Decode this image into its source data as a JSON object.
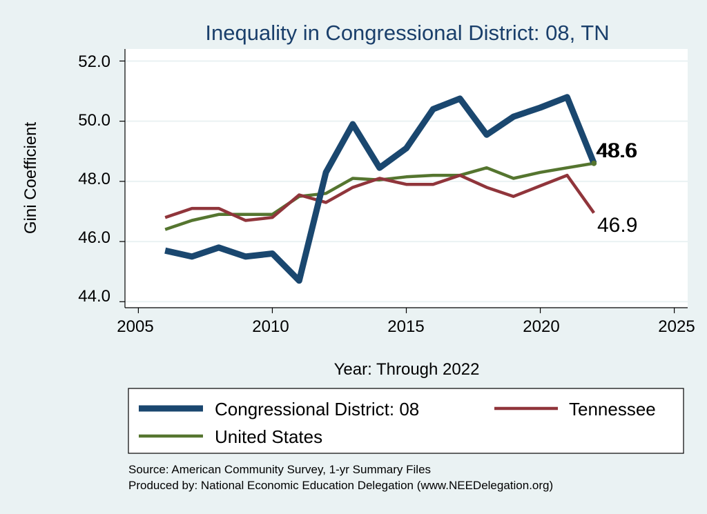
{
  "chart_data": {
    "type": "line",
    "title": "Inequality in Congressional District:  08, TN",
    "xlabel": "Year: Through 2022",
    "ylabel": "Gini Coefficient",
    "xlim": [
      2004.5,
      2025.5
    ],
    "ylim": [
      43.8,
      52.4
    ],
    "xticks": [
      2005,
      2010,
      2015,
      2020,
      2025
    ],
    "yticks": [
      44.0,
      46.0,
      48.0,
      50.0,
      52.0
    ],
    "ytick_labels": [
      "44.0",
      "46.0",
      "48.0",
      "50.0",
      "52.0"
    ],
    "grid": true,
    "x": [
      2006,
      2007,
      2008,
      2009,
      2010,
      2011,
      2012,
      2013,
      2014,
      2015,
      2016,
      2017,
      2018,
      2019,
      2020,
      2021,
      2022
    ],
    "series": [
      {
        "name": "Congressional District:  08",
        "color": "#1a476f",
        "values": [
          45.7,
          45.5,
          45.8,
          45.5,
          45.6,
          44.7,
          48.3,
          49.9,
          48.45,
          49.1,
          50.4,
          50.75,
          49.55,
          50.15,
          50.45,
          50.8,
          48.6
        ],
        "end_label": "48.6"
      },
      {
        "name": "Tennessee",
        "color": "#90353b",
        "values": [
          46.8,
          47.1,
          47.1,
          46.7,
          46.8,
          47.55,
          47.3,
          47.8,
          48.1,
          47.9,
          47.9,
          48.2,
          47.8,
          47.5,
          47.85,
          48.2,
          46.95
        ],
        "end_label": "46.9"
      },
      {
        "name": "United States",
        "color": "#55752f",
        "values": [
          46.4,
          46.7,
          46.9,
          46.9,
          46.9,
          47.5,
          47.6,
          48.1,
          48.05,
          48.15,
          48.2,
          48.2,
          48.45,
          48.1,
          48.3,
          48.45,
          48.6
        ],
        "end_label": "48.6"
      }
    ],
    "legend": {
      "position": "bottom",
      "entries": [
        "Congressional District:  08",
        "Tennessee",
        "United States"
      ]
    },
    "notes": [
      "Source: American Community Survey, 1-yr Summary Files",
      "Produced by: National Economic Education Delegation (www.NEEDelegation.org)"
    ]
  }
}
